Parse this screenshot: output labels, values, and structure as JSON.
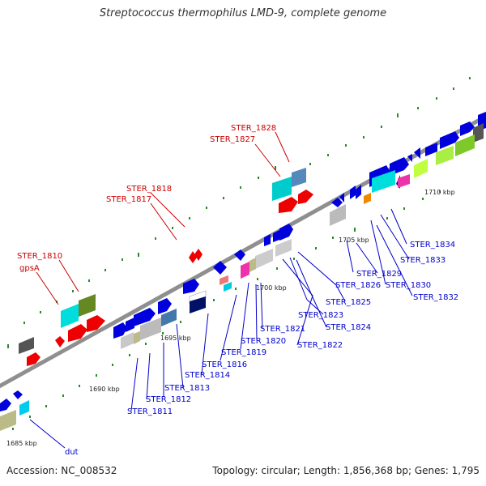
{
  "title": "Streptococcus thermophilus LMD-9, complete genome",
  "footer": {
    "accession": "Accession: NC_008532",
    "topology": "Topology: circular; Length: 1,856,368 bp; Genes: 1,795"
  },
  "colors": {
    "backbone": "#8f8f8f",
    "tick": "#2a8a2a",
    "label_red": "#cc0000",
    "label_blue": "#0000cc",
    "scale_text": "#222222"
  },
  "scale": {
    "label_unit": "kbp",
    "ticks": [
      {
        "label": "1685 kbp",
        "kbp": 1685
      },
      {
        "label": "1690 kbp",
        "kbp": 1690
      },
      {
        "label": "1695 kbp",
        "kbp": 1695
      },
      {
        "label": "1700 kbp",
        "kbp": 1700
      },
      {
        "label": "1705 kbp",
        "kbp": 1705
      },
      {
        "label": "1710 kbp",
        "kbp": 1710
      }
    ]
  },
  "labels_forward": [
    "STER_1828",
    "STER_1827",
    "STER_1818",
    "STER_1817",
    "STER_1810",
    "gpsA"
  ],
  "labels_reverse": [
    "STER_1834",
    "STER_1833",
    "STER_1829",
    "STER_1830",
    "STER_1826",
    "STER_1832",
    "STER_1825",
    "STER_1823",
    "STER_1824",
    "STER_1821",
    "STER_1822",
    "STER_1820",
    "STER_1819",
    "STER_1816",
    "STER_1814",
    "STER_1813",
    "STER_1812",
    "STER_1811",
    "dut"
  ]
}
